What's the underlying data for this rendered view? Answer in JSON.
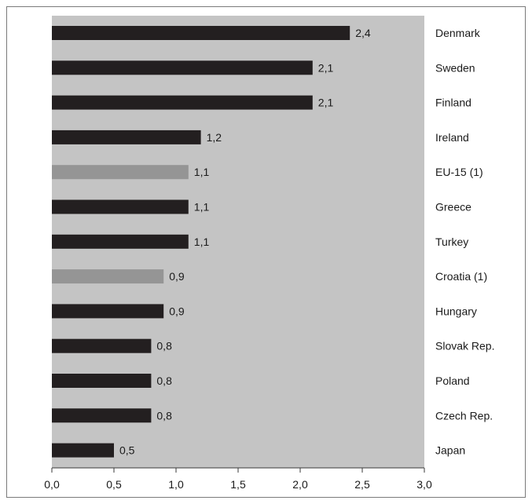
{
  "chart_data": {
    "type": "bar",
    "orientation": "horizontal",
    "title": "",
    "xlabel": "",
    "ylabel": "",
    "categories": [
      "Denmark",
      "Sweden",
      "Finland",
      "Ireland",
      "EU-15 (1)",
      "Greece",
      "Turkey",
      "Croatia (1)",
      "Hungary",
      "Slovak Rep.",
      "Poland",
      "Czech Rep.",
      "Japan"
    ],
    "values": [
      2.4,
      2.1,
      2.1,
      1.2,
      1.1,
      1.1,
      1.1,
      0.9,
      0.9,
      0.8,
      0.8,
      0.8,
      0.5
    ],
    "value_labels": [
      "2,4",
      "2,1",
      "2,1",
      "1,2",
      "1,1",
      "1,1",
      "1,1",
      "0,9",
      "0,9",
      "0,8",
      "0,8",
      "0,8",
      "0,5"
    ],
    "highlighted": [
      false,
      false,
      false,
      false,
      true,
      false,
      false,
      true,
      false,
      false,
      false,
      false,
      false
    ],
    "xlim": [
      0,
      3.0
    ],
    "xticks": [
      0,
      0.5,
      1.0,
      1.5,
      2.0,
      2.5,
      3.0
    ],
    "xtick_labels": [
      "0,0",
      "0,5",
      "1,0",
      "1,5",
      "2,0",
      "2,5",
      "3,0"
    ],
    "grid": false,
    "legend": "none",
    "colors": {
      "plot_background": "#c4c4c4",
      "bar": "#231f20",
      "bar_highlight": "#959595",
      "axis": "#3a3a3a",
      "text": "#1a1a1a"
    }
  }
}
